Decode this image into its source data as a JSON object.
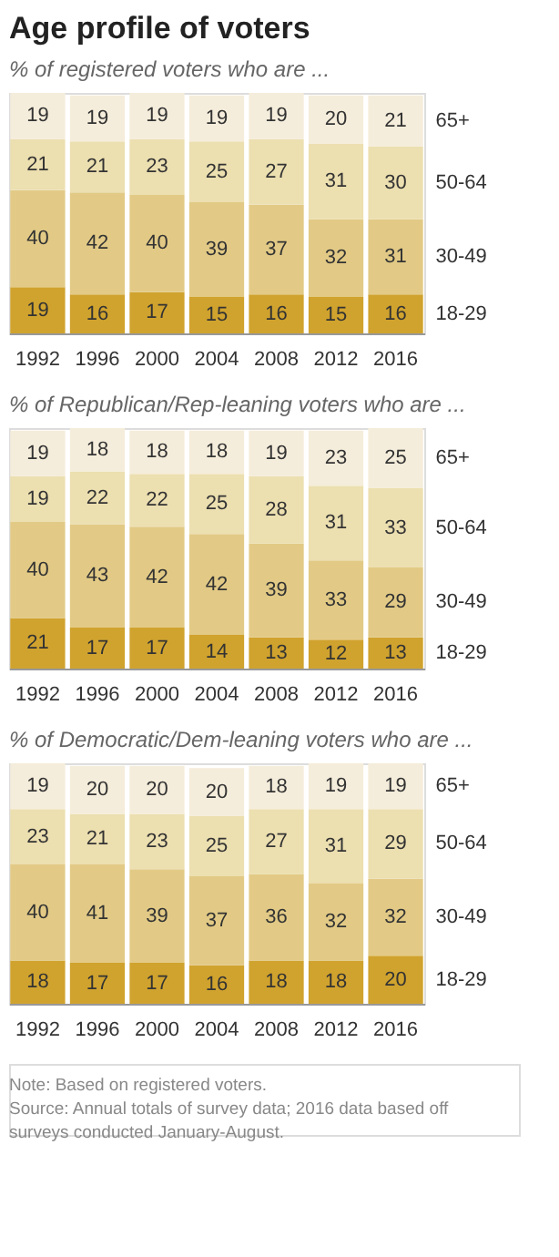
{
  "chart_data": [
    {
      "type": "bar",
      "title": "Age profile of voters",
      "subtitle": "% of registered voters who are ...",
      "stacked": true,
      "data_labels": true,
      "legend": false,
      "grid": false,
      "categories": [
        "1992",
        "1996",
        "2000",
        "2004",
        "2008",
        "2012",
        "2016"
      ],
      "series": [
        {
          "name": "18-29",
          "color": "#d0a32e",
          "values": [
            19,
            16,
            17,
            15,
            16,
            15,
            16
          ]
        },
        {
          "name": "30-49",
          "color": "#e2ca86",
          "values": [
            40,
            42,
            40,
            39,
            37,
            32,
            31
          ]
        },
        {
          "name": "50-64",
          "color": "#ecdfb0",
          "values": [
            21,
            21,
            23,
            25,
            27,
            31,
            30
          ]
        },
        {
          "name": "65+",
          "color": "#f5eddb",
          "values": [
            19,
            19,
            19,
            19,
            19,
            20,
            21
          ]
        }
      ]
    },
    {
      "type": "bar",
      "subtitle": "% of Republican/Rep-leaning voters who are ...",
      "stacked": true,
      "data_labels": true,
      "legend": false,
      "grid": false,
      "categories": [
        "1992",
        "1996",
        "2000",
        "2004",
        "2008",
        "2012",
        "2016"
      ],
      "series": [
        {
          "name": "18-29",
          "color": "#d0a32e",
          "values": [
            21,
            17,
            17,
            14,
            13,
            12,
            13
          ]
        },
        {
          "name": "30-49",
          "color": "#e2ca86",
          "values": [
            40,
            43,
            42,
            42,
            39,
            33,
            29
          ]
        },
        {
          "name": "50-64",
          "color": "#ecdfb0",
          "values": [
            19,
            22,
            22,
            25,
            28,
            31,
            33
          ]
        },
        {
          "name": "65+",
          "color": "#f5eddb",
          "values": [
            19,
            18,
            18,
            18,
            19,
            23,
            25
          ]
        }
      ]
    },
    {
      "type": "bar",
      "subtitle": "% of Democratic/Dem-leaning voters who are ...",
      "stacked": true,
      "data_labels": true,
      "legend": false,
      "grid": false,
      "categories": [
        "1992",
        "1996",
        "2000",
        "2004",
        "2008",
        "2012",
        "2016"
      ],
      "series": [
        {
          "name": "18-29",
          "color": "#d0a32e",
          "values": [
            18,
            17,
            17,
            16,
            18,
            18,
            20
          ]
        },
        {
          "name": "30-49",
          "color": "#e2ca86",
          "values": [
            40,
            41,
            39,
            37,
            36,
            32,
            32
          ]
        },
        {
          "name": "50-64",
          "color": "#ecdfb0",
          "values": [
            23,
            21,
            23,
            25,
            27,
            31,
            29
          ]
        },
        {
          "name": "65+",
          "color": "#f5eddb",
          "values": [
            19,
            20,
            20,
            20,
            18,
            19,
            19
          ]
        }
      ],
      "annotations": [
        "Note: Based on registered voters.",
        "Source: Annual totals of survey data; 2016 data based off surveys conducted January-August."
      ]
    }
  ]
}
